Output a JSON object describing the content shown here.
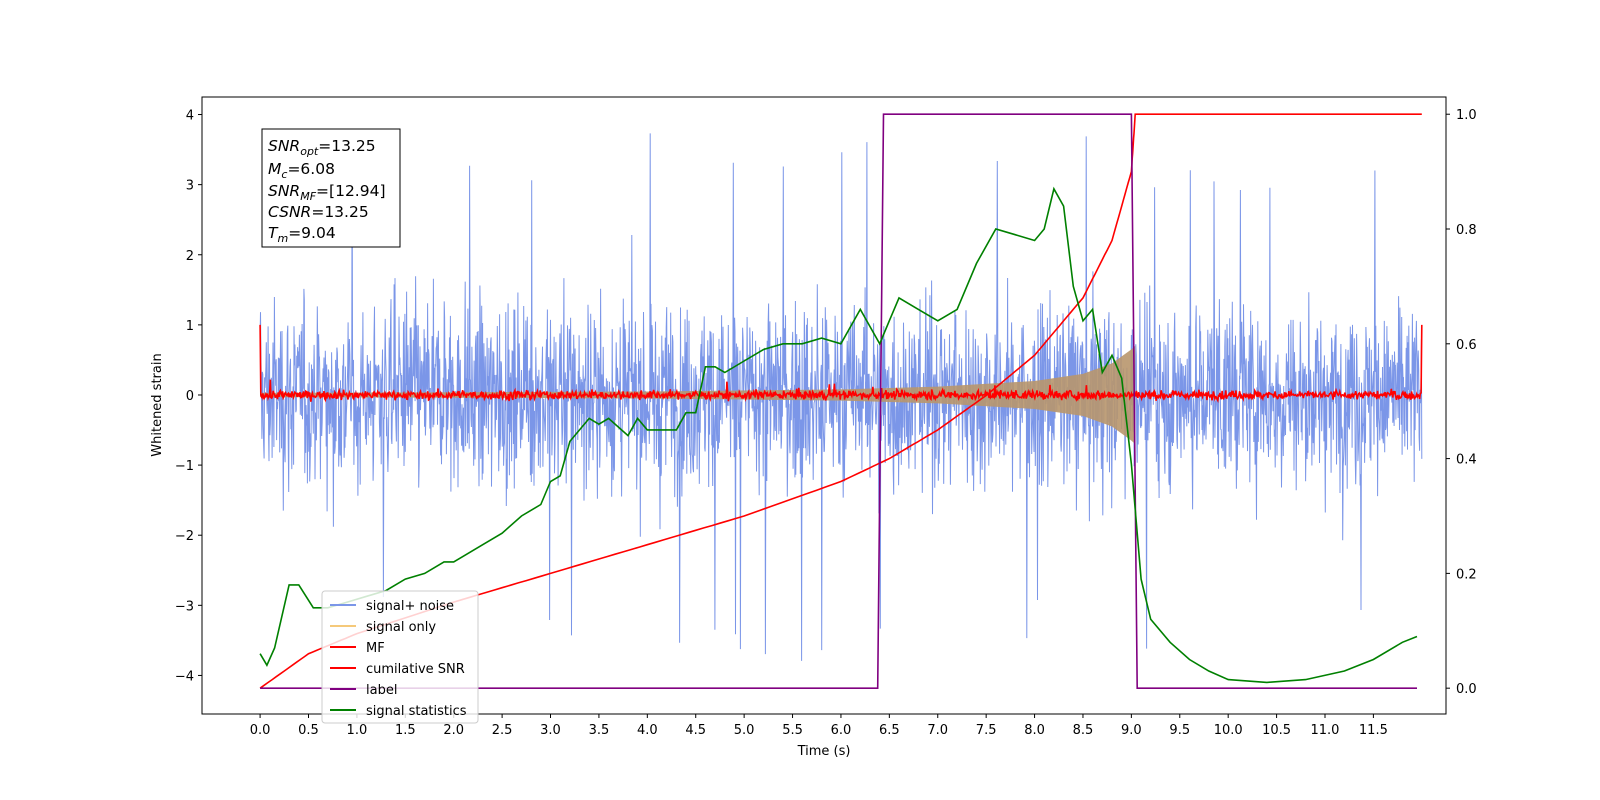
{
  "chart_data": {
    "type": "line",
    "xlabel": "Time (s)",
    "ylabel": "Whitened strain",
    "xlim": [
      -0.6,
      12.25
    ],
    "ylim": [
      -4.55,
      4.25
    ],
    "y2lim": [
      -0.045,
      1.03
    ],
    "x_ticks": [
      "0.0",
      "0.5",
      "1.0",
      "1.5",
      "2.0",
      "2.5",
      "3.0",
      "3.5",
      "4.0",
      "4.5",
      "5.0",
      "5.5",
      "6.0",
      "6.5",
      "7.0",
      "7.5",
      "8.0",
      "8.5",
      "9.0",
      "9.5",
      "10.0",
      "10.5",
      "11.0",
      "11.5"
    ],
    "y_ticks": [
      "4",
      "3",
      "2",
      "1",
      "0",
      "−1",
      "−2",
      "−3",
      "−4"
    ],
    "y2_ticks": [
      "1.0",
      "0.8",
      "0.6",
      "0.4",
      "0.2",
      "0.0"
    ],
    "grid": false,
    "legend_position": "lower-left",
    "annotation": {
      "snr_opt": {
        "base": "SNR",
        "sub": "opt",
        "value": "=13.25"
      },
      "mc": {
        "base": "M",
        "sub": "c",
        "value": "=6.08"
      },
      "snr_mf": {
        "base": "SNR",
        "sub": "MF",
        "value": "=[12.94]"
      },
      "csnr": {
        "base": "CSNR",
        "value": "=13.25"
      },
      "tm": {
        "base": "T",
        "sub": "m",
        "value": "=9.04"
      }
    },
    "series": [
      {
        "name": "signal+ noise",
        "color": "#7b96e8",
        "axis": "left",
        "x_range": [
          0.0,
          12.0
        ],
        "amplitude_typical": 2.0,
        "amplitude_max": 3.8
      },
      {
        "name": "signal only",
        "color": "#f5c97a",
        "axis": "left",
        "envelope": {
          "x": [
            0.0,
            2.0,
            4.0,
            6.0,
            7.0,
            8.0,
            8.5,
            8.8,
            9.0,
            9.04
          ],
          "amplitude": [
            0.03,
            0.04,
            0.05,
            0.08,
            0.12,
            0.2,
            0.3,
            0.45,
            0.65,
            0.7
          ]
        }
      },
      {
        "name": "MF",
        "color": "#ff0000",
        "axis": "left",
        "x_range": [
          0.0,
          12.0
        ],
        "noise_amplitude": 0.12,
        "edge_value": 1.0
      },
      {
        "name": "cumilative SNR",
        "color": "#ff0000",
        "axis": "right",
        "x": [
          0.0,
          0.5,
          1.0,
          2.0,
          3.0,
          4.0,
          5.0,
          6.0,
          6.5,
          7.0,
          7.5,
          8.0,
          8.5,
          8.8,
          9.0,
          9.04,
          12.0
        ],
        "y": [
          0.0,
          0.06,
          0.095,
          0.15,
          0.2,
          0.25,
          0.3,
          0.36,
          0.4,
          0.45,
          0.51,
          0.58,
          0.68,
          0.78,
          0.9,
          1.0,
          1.0
        ]
      },
      {
        "name": "label",
        "color": "#800080",
        "axis": "right",
        "x": [
          0.0,
          6.38,
          6.44,
          9.0,
          9.06,
          11.95
        ],
        "y": [
          0.0,
          0.0,
          1.0,
          1.0,
          0.0,
          0.0
        ]
      },
      {
        "name": "signal statistics",
        "color": "#008000",
        "axis": "right",
        "x": [
          0.0,
          0.07,
          0.15,
          0.3,
          0.4,
          0.55,
          0.7,
          0.9,
          1.1,
          1.3,
          1.5,
          1.7,
          1.9,
          2.0,
          2.1,
          2.3,
          2.5,
          2.7,
          2.9,
          3.0,
          3.1,
          3.2,
          3.4,
          3.5,
          3.6,
          3.8,
          3.9,
          4.0,
          4.2,
          4.3,
          4.4,
          4.5,
          4.6,
          4.7,
          4.8,
          5.0,
          5.2,
          5.4,
          5.6,
          5.8,
          6.0,
          6.2,
          6.4,
          6.5,
          6.6,
          6.8,
          7.0,
          7.2,
          7.4,
          7.6,
          7.8,
          8.0,
          8.1,
          8.2,
          8.3,
          8.4,
          8.5,
          8.6,
          8.7,
          8.8,
          8.9,
          9.0,
          9.1,
          9.2,
          9.4,
          9.6,
          9.8,
          10.0,
          10.4,
          10.8,
          11.2,
          11.5,
          11.8,
          11.95
        ],
        "y": [
          0.06,
          0.04,
          0.07,
          0.18,
          0.18,
          0.14,
          0.14,
          0.15,
          0.16,
          0.17,
          0.19,
          0.2,
          0.22,
          0.22,
          0.23,
          0.25,
          0.27,
          0.3,
          0.32,
          0.36,
          0.37,
          0.43,
          0.47,
          0.46,
          0.47,
          0.44,
          0.47,
          0.45,
          0.45,
          0.45,
          0.48,
          0.48,
          0.56,
          0.56,
          0.55,
          0.57,
          0.59,
          0.6,
          0.6,
          0.61,
          0.6,
          0.66,
          0.6,
          0.64,
          0.68,
          0.66,
          0.64,
          0.66,
          0.74,
          0.8,
          0.79,
          0.78,
          0.8,
          0.87,
          0.84,
          0.7,
          0.64,
          0.66,
          0.55,
          0.58,
          0.54,
          0.39,
          0.19,
          0.12,
          0.08,
          0.05,
          0.03,
          0.015,
          0.01,
          0.015,
          0.03,
          0.05,
          0.08,
          0.09
        ]
      }
    ]
  }
}
